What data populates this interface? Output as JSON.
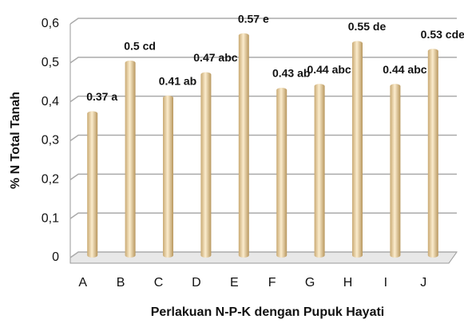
{
  "chart_data": {
    "type": "bar",
    "categories": [
      "A",
      "B",
      "C",
      "D",
      "E",
      "F",
      "G",
      "H",
      "I",
      "J"
    ],
    "values": [
      0.37,
      0.5,
      0.41,
      0.47,
      0.57,
      0.43,
      0.44,
      0.55,
      0.44,
      0.53
    ],
    "value_labels": [
      "0.37 a",
      "0.5 cd",
      "0.41 ab",
      "0.47 abc",
      "0.57 e",
      "0.43 ab",
      "0.44 abc",
      "0.55 de",
      "0.44 abc",
      "0.53 cde"
    ],
    "color": "#f3dcae",
    "ylim": [
      0,
      0.6
    ],
    "yticks": [
      0,
      {
        "value": 0.1,
        "label": "0,1"
      },
      {
        "value": 0.2,
        "label": "0,2"
      },
      {
        "value": 0.3,
        "label": "0,3"
      },
      {
        "value": 0.4,
        "label": "0,4"
      },
      {
        "value": 0.5,
        "label": "0,5"
      },
      {
        "value": 0.6,
        "label": "0,6"
      }
    ],
    "grid": true,
    "xlabel": "Perlakuan N-P-K dengan Pupuk Hayati",
    "ylabel": "% N Total Tanah"
  }
}
